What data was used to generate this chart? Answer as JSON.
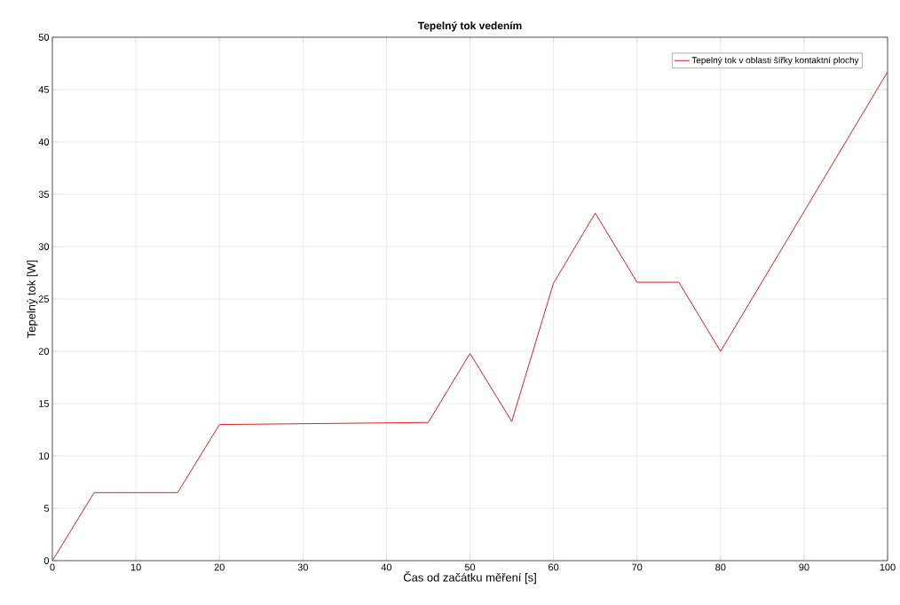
{
  "chart_data": {
    "type": "line",
    "title": "Tepelný tok vedením",
    "xlabel": "Čas od začátku měření [s]",
    "ylabel": "Tepelný tok [W]",
    "series": [
      {
        "name": "Tepelný tok v oblasti šířky kontaktní plochy",
        "color": "#e0201b",
        "x": [
          0,
          5,
          15,
          20,
          45,
          50,
          55,
          60,
          65,
          70,
          75,
          80,
          100
        ],
        "values": [
          0,
          6.5,
          6.5,
          13,
          13.2,
          19.8,
          13.3,
          26.5,
          33.2,
          26.6,
          26.6,
          20,
          46.7
        ]
      }
    ],
    "xlim": [
      0,
      100
    ],
    "xticks": [
      0,
      10,
      20,
      30,
      40,
      50,
      60,
      70,
      80,
      90,
      100
    ],
    "ylim": [
      0,
      50
    ],
    "yticks": [
      0,
      5,
      10,
      15,
      20,
      25,
      30,
      35,
      40,
      45,
      50
    ],
    "grid": true,
    "legend": "top right"
  }
}
